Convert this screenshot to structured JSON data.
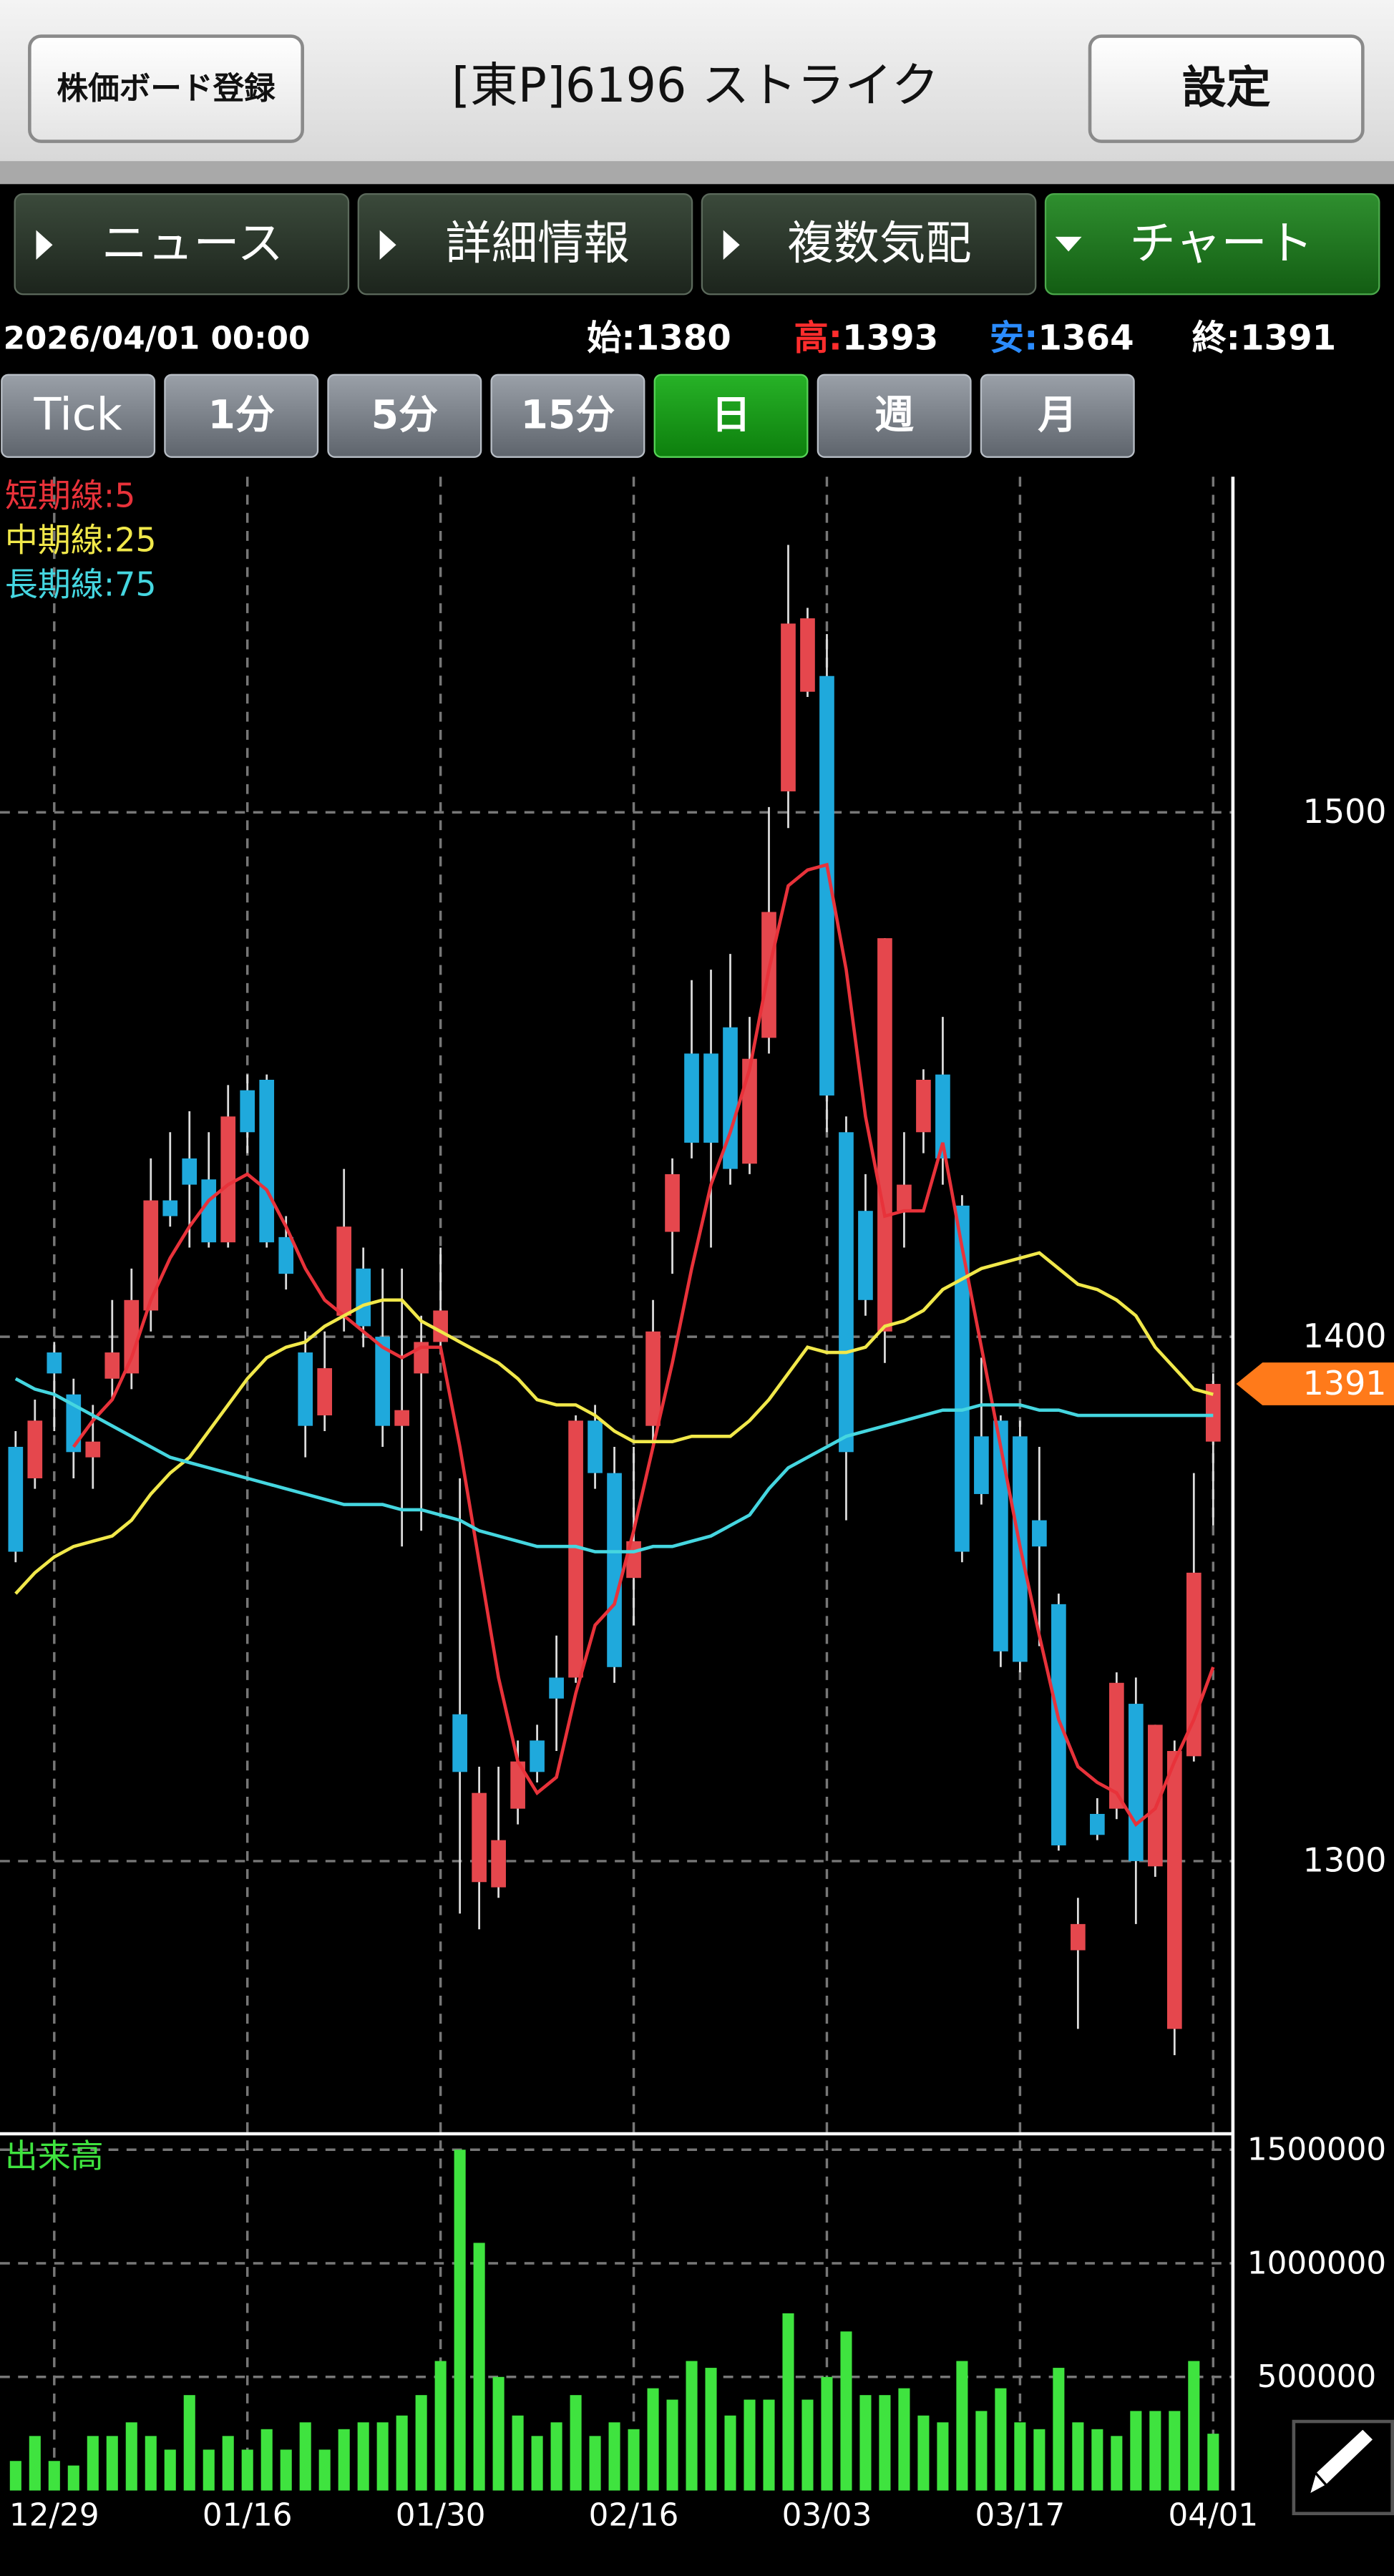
{
  "header": {
    "board_button": "株価ボード登録",
    "title": "[東P]6196 ストライク",
    "settings_button": "設定"
  },
  "tabs": [
    "ニュース",
    "詳細情報",
    "複数気配",
    "チャート"
  ],
  "quote": {
    "datetime": "2026/04/01 00:00",
    "open_label": "始:",
    "open": 1380,
    "high_label": "高:",
    "high": 1393,
    "low_label": "安:",
    "low": 1364,
    "close_label": "終:",
    "close": 1391
  },
  "periods": [
    "Tick",
    "1分",
    "5分",
    "15分",
    "日",
    "週",
    "月"
  ],
  "chart_data": {
    "type": "candlestick",
    "categories": [
      null,
      null,
      "12/29",
      null,
      null,
      null,
      null,
      null,
      null,
      null,
      null,
      null,
      "01/16",
      null,
      null,
      null,
      null,
      null,
      null,
      null,
      null,
      null,
      "01/30",
      null,
      null,
      null,
      null,
      null,
      null,
      null,
      null,
      null,
      "02/16",
      null,
      null,
      null,
      null,
      null,
      null,
      null,
      null,
      null,
      "03/03",
      null,
      null,
      null,
      null,
      null,
      null,
      null,
      null,
      null,
      "03/17",
      null,
      null,
      null,
      null,
      null,
      null,
      null,
      null,
      null,
      "04/01"
    ],
    "open": [
      1379,
      1373,
      1397,
      1389,
      1377,
      1392,
      1393,
      1405,
      1426,
      1434,
      1430,
      1418,
      1447,
      1449,
      1419,
      1397,
      1385,
      1404,
      1413,
      1400,
      1383,
      1393,
      1399,
      1328,
      1296,
      1295,
      1310,
      1323,
      1335,
      1335,
      1384,
      1374,
      1354,
      1383,
      1420,
      1454,
      1454,
      1459,
      1433,
      1457,
      1504,
      1523,
      1526,
      1439,
      1424,
      1401,
      1424,
      1439,
      1450,
      1425,
      1381,
      1384,
      1381,
      1365,
      1349,
      1283,
      1309,
      1310,
      1330,
      1299,
      1268,
      1320,
      1380
    ],
    "high": [
      1382,
      1388,
      1399,
      1392,
      1387,
      1407,
      1413,
      1434,
      1439,
      1443,
      1439,
      1448,
      1450,
      1450,
      1423,
      1401,
      1401,
      1432,
      1417,
      1413,
      1413,
      1404,
      1417,
      1373,
      1318,
      1318,
      1323,
      1326,
      1343,
      1385,
      1387,
      1379,
      1379,
      1407,
      1434,
      1468,
      1470,
      1473,
      1461,
      1501,
      1551,
      1539,
      1534,
      1442,
      1431,
      1476,
      1439,
      1451,
      1461,
      1427,
      1396,
      1385,
      1384,
      1379,
      1351,
      1293,
      1312,
      1336,
      1335,
      1326,
      1323,
      1374,
      1393
    ],
    "low": [
      1357,
      1371,
      1382,
      1373,
      1371,
      1388,
      1390,
      1401,
      1421,
      1417,
      1417,
      1417,
      1435,
      1417,
      1409,
      1377,
      1382,
      1401,
      1398,
      1379,
      1360,
      1363,
      1398,
      1290,
      1287,
      1293,
      1307,
      1315,
      1321,
      1334,
      1371,
      1334,
      1345,
      1379,
      1412,
      1434,
      1417,
      1429,
      1431,
      1454,
      1497,
      1522,
      1439,
      1365,
      1404,
      1395,
      1417,
      1435,
      1429,
      1357,
      1368,
      1337,
      1336,
      1341,
      1302,
      1268,
      1304,
      1308,
      1288,
      1297,
      1263,
      1319,
      1364
    ],
    "close": [
      1359,
      1384,
      1393,
      1378,
      1380,
      1397,
      1407,
      1426,
      1423,
      1429,
      1418,
      1442,
      1439,
      1418,
      1412,
      1383,
      1394,
      1421,
      1402,
      1383,
      1386,
      1399,
      1405,
      1317,
      1313,
      1304,
      1319,
      1317,
      1331,
      1384,
      1374,
      1337,
      1361,
      1401,
      1431,
      1437,
      1437,
      1432,
      1453,
      1481,
      1536,
      1537,
      1446,
      1378,
      1407,
      1476,
      1429,
      1449,
      1434,
      1359,
      1370,
      1340,
      1338,
      1360,
      1303,
      1288,
      1305,
      1334,
      1300,
      1326,
      1321,
      1355,
      1391
    ],
    "up_color": "#e5474d",
    "down_color": "#1fa9dc",
    "ylim": [
      1248,
      1564
    ],
    "yticks": [
      1300,
      1400,
      1500
    ],
    "series": [
      {
        "name": "短期線:5",
        "color": "#e8323a",
        "values": [
          null,
          null,
          null,
          1379,
          1384,
          1388,
          1396,
          1407,
          1415,
          1421,
          1426,
          1429,
          1431,
          1428,
          1421,
          1413,
          1407,
          1404,
          1401,
          1398,
          1396,
          1398,
          1398,
          1379,
          1357,
          1335,
          1319,
          1313,
          1316,
          1332,
          1345,
          1349,
          1363,
          1379,
          1395,
          1413,
          1429,
          1439,
          1451,
          1470,
          1486,
          1489,
          1490,
          1470,
          1442,
          1423,
          1424,
          1424,
          1437,
          1417,
          1398,
          1379,
          1360,
          1343,
          1327,
          1318,
          1315,
          1313,
          1307,
          1310,
          1319,
          1327,
          1337
        ]
      },
      {
        "name": "中期線:25",
        "color": "#f1e84a",
        "values": [
          1351,
          1355,
          1358,
          1360,
          1361,
          1362,
          1365,
          1370,
          1374,
          1377,
          1382,
          1387,
          1392,
          1396,
          1398,
          1399,
          1402,
          1404,
          1406,
          1407,
          1407,
          1403,
          1401,
          1399,
          1397,
          1395,
          1392,
          1388,
          1387,
          1387,
          1385,
          1382,
          1380,
          1380,
          1380,
          1381,
          1381,
          1381,
          1384,
          1388,
          1393,
          1398,
          1397,
          1397,
          1398,
          1402,
          1403,
          1405,
          1409,
          1411,
          1413,
          1414,
          1415,
          1416,
          1413,
          1410,
          1409,
          1407,
          1404,
          1398,
          1394,
          1390,
          1389
        ]
      },
      {
        "name": "長期線:75",
        "color": "#45d6e0",
        "values": [
          1392,
          1390,
          1389,
          1387,
          1385,
          1383,
          1381,
          1379,
          1377,
          1376,
          1375,
          1374,
          1373,
          1372,
          1371,
          1370,
          1369,
          1368,
          1368,
          1368,
          1367,
          1367,
          1366,
          1365,
          1363,
          1362,
          1361,
          1360,
          1360,
          1360,
          1359,
          1359,
          1359,
          1360,
          1360,
          1361,
          1362,
          1364,
          1366,
          1371,
          1375,
          1377,
          1379,
          1381,
          1382,
          1383,
          1384,
          1385,
          1386,
          1386,
          1387,
          1387,
          1387,
          1386,
          1386,
          1385,
          1385,
          1385,
          1385,
          1385,
          1385,
          1385,
          1385
        ]
      }
    ],
    "volume": {
      "title": "出来高",
      "color": "#3fe33f",
      "ylim": [
        0,
        1570000
      ],
      "yticks": [
        500000,
        1000000,
        1500000
      ],
      "values": [
        130000,
        240000,
        130000,
        110000,
        240000,
        240000,
        300000,
        240000,
        180000,
        420000,
        180000,
        240000,
        180000,
        270000,
        180000,
        300000,
        180000,
        270000,
        300000,
        300000,
        330000,
        420000,
        570000,
        1500000,
        1090000,
        500000,
        330000,
        240000,
        300000,
        420000,
        240000,
        300000,
        270000,
        450000,
        400000,
        570000,
        540000,
        330000,
        400000,
        400000,
        780000,
        400000,
        500000,
        700000,
        420000,
        420000,
        450000,
        330000,
        300000,
        570000,
        350000,
        450000,
        300000,
        270000,
        540000,
        300000,
        270000,
        240000,
        350000,
        350000,
        350000,
        570000,
        250000
      ]
    },
    "price_marker_color": "#ff7a1a"
  }
}
